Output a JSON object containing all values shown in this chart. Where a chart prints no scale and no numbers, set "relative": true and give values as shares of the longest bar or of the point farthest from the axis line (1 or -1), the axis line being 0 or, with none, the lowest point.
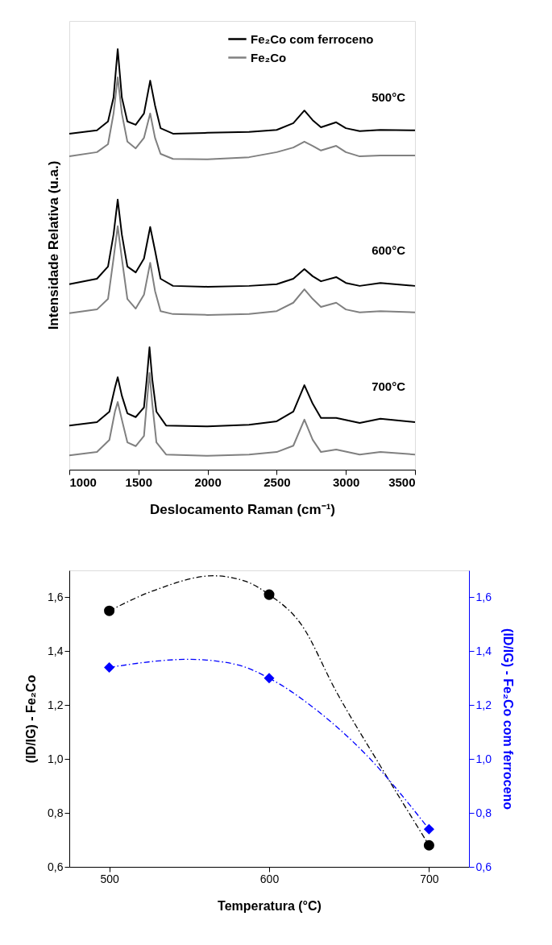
{
  "chart_data": [
    {
      "type": "line",
      "relative": true,
      "xlabel": "Deslocamento Raman (cm⁻¹)",
      "ylabel": "Intensidade Relativa (u.a.)",
      "x": [
        1000,
        1200,
        1280,
        1320,
        1350,
        1380,
        1420,
        1480,
        1540,
        1585,
        1620,
        1660,
        1750,
        2000,
        2300,
        2500,
        2620,
        2700,
        2760,
        2820,
        2930,
        3000,
        3100,
        3250,
        3500
      ],
      "xlim": [
        1000,
        3500
      ],
      "xticks": [
        1000,
        1500,
        2000,
        2500,
        3000,
        3500
      ],
      "grid": false,
      "legend": "top right",
      "marker": "none",
      "line_style": "solid",
      "series": [
        {
          "name": "Fe₂Co com ferroceno",
          "color": "#000000",
          "values": [
            0.799,
            0.807,
            0.828,
            0.885,
            1.0,
            0.885,
            0.828,
            0.82,
            0.847,
            0.925,
            0.866,
            0.812,
            0.799,
            0.801,
            0.803,
            0.808,
            0.824,
            0.854,
            0.831,
            0.814,
            0.826,
            0.812,
            0.805,
            0.808,
            0.807
          ]
        },
        {
          "name": "Fe₂Co",
          "color": "#808080",
          "values": [
            0.745,
            0.755,
            0.774,
            0.847,
            0.933,
            0.847,
            0.78,
            0.764,
            0.789,
            0.847,
            0.789,
            0.751,
            0.739,
            0.738,
            0.743,
            0.755,
            0.766,
            0.78,
            0.77,
            0.759,
            0.77,
            0.755,
            0.745,
            0.747,
            0.747
          ]
        },
        {
          "color": "#000000",
          "values": [
            0.441,
            0.454,
            0.483,
            0.559,
            0.642,
            0.559,
            0.483,
            0.469,
            0.502,
            0.577,
            0.521,
            0.454,
            0.437,
            0.435,
            0.437,
            0.441,
            0.454,
            0.477,
            0.46,
            0.448,
            0.458,
            0.444,
            0.437,
            0.444,
            0.437
          ]
        },
        {
          "color": "#808080",
          "values": [
            0.372,
            0.381,
            0.406,
            0.502,
            0.579,
            0.502,
            0.406,
            0.383,
            0.416,
            0.492,
            0.425,
            0.377,
            0.37,
            0.368,
            0.37,
            0.377,
            0.397,
            0.429,
            0.406,
            0.387,
            0.397,
            0.381,
            0.374,
            0.377,
            0.374
          ]
        },
        {
          "color": "#000000",
          "x": [
            1000,
            1200,
            1290,
            1330,
            1350,
            1380,
            1420,
            1480,
            1540,
            1560,
            1580,
            1600,
            1630,
            1700,
            2000,
            2300,
            2500,
            2620,
            2700,
            2760,
            2820,
            2930,
            3100,
            3250,
            3500
          ],
          "values": [
            0.105,
            0.113,
            0.138,
            0.195,
            0.22,
            0.176,
            0.134,
            0.125,
            0.148,
            0.215,
            0.291,
            0.215,
            0.138,
            0.105,
            0.103,
            0.107,
            0.115,
            0.138,
            0.201,
            0.157,
            0.123,
            0.123,
            0.111,
            0.121,
            0.113
          ]
        },
        {
          "color": "#808080",
          "x": [
            1000,
            1200,
            1290,
            1330,
            1350,
            1380,
            1420,
            1480,
            1540,
            1560,
            1580,
            1600,
            1630,
            1700,
            2000,
            2300,
            2500,
            2620,
            2700,
            2760,
            2820,
            2930,
            3100,
            3250,
            3500
          ],
          "values": [
            0.034,
            0.042,
            0.071,
            0.138,
            0.161,
            0.119,
            0.065,
            0.056,
            0.08,
            0.157,
            0.23,
            0.157,
            0.065,
            0.036,
            0.033,
            0.036,
            0.042,
            0.057,
            0.119,
            0.071,
            0.042,
            0.048,
            0.036,
            0.042,
            0.036
          ]
        }
      ],
      "annotations": [
        "500°C",
        "600°C",
        "700°C"
      ]
    },
    {
      "type": "scatter",
      "xlabel": "Temperatura (°C)",
      "ylabel": "(ID/IG) - Fe₂Co",
      "y2label": "(ID/IG) - Fe₂Co com ferroceno",
      "x": [
        500,
        600,
        700
      ],
      "xlim": [
        475,
        725
      ],
      "xticks": [
        500,
        600,
        700
      ],
      "ylim": [
        0.6,
        1.7
      ],
      "yticks": [
        {
          "value": 0.6,
          "label": "0,6"
        },
        {
          "value": 0.8,
          "label": "0,8"
        },
        {
          "value": 1.0,
          "label": "1,0"
        },
        {
          "value": 1.2,
          "label": "1,2"
        },
        {
          "value": 1.4,
          "label": "1,4"
        },
        {
          "value": 1.6,
          "label": "1,6"
        }
      ],
      "y2lim": [
        0.6,
        1.7
      ],
      "y2ticks": [
        {
          "value": 0.6,
          "label": "0,6"
        },
        {
          "value": 0.8,
          "label": "0,8"
        },
        {
          "value": 1.0,
          "label": "1,0"
        },
        {
          "value": 1.2,
          "label": "1,2"
        },
        {
          "value": 1.4,
          "label": "1,4"
        },
        {
          "value": 1.6,
          "label": "1,6"
        }
      ],
      "grid": false,
      "series": [
        {
          "type": "line",
          "color": "#000000",
          "line_style": "dashed",
          "marker": "none",
          "x": [
            500,
            530,
            565,
            585,
            600,
            620,
            642,
            670,
            700
          ],
          "values": [
            1.55,
            1.63,
            1.68,
            1.66,
            1.61,
            1.5,
            1.25,
            0.97,
            0.68
          ]
        },
        {
          "type": "line",
          "axis": "y2",
          "color": "#0000ff",
          "line_style": "dashed",
          "marker": "none",
          "x": [
            500,
            550,
            580,
            600,
            630,
            660,
            700
          ],
          "values": [
            1.34,
            1.37,
            1.35,
            1.3,
            1.18,
            1.02,
            0.74
          ]
        },
        {
          "type": "scatter",
          "color": "#000000",
          "marker": "circle",
          "values": [
            1.55,
            1.61,
            0.68
          ]
        },
        {
          "type": "scatter",
          "axis": "y2",
          "color": "#0000ff",
          "marker": "diamond",
          "values": [
            1.34,
            1.3,
            0.74
          ]
        }
      ]
    }
  ]
}
